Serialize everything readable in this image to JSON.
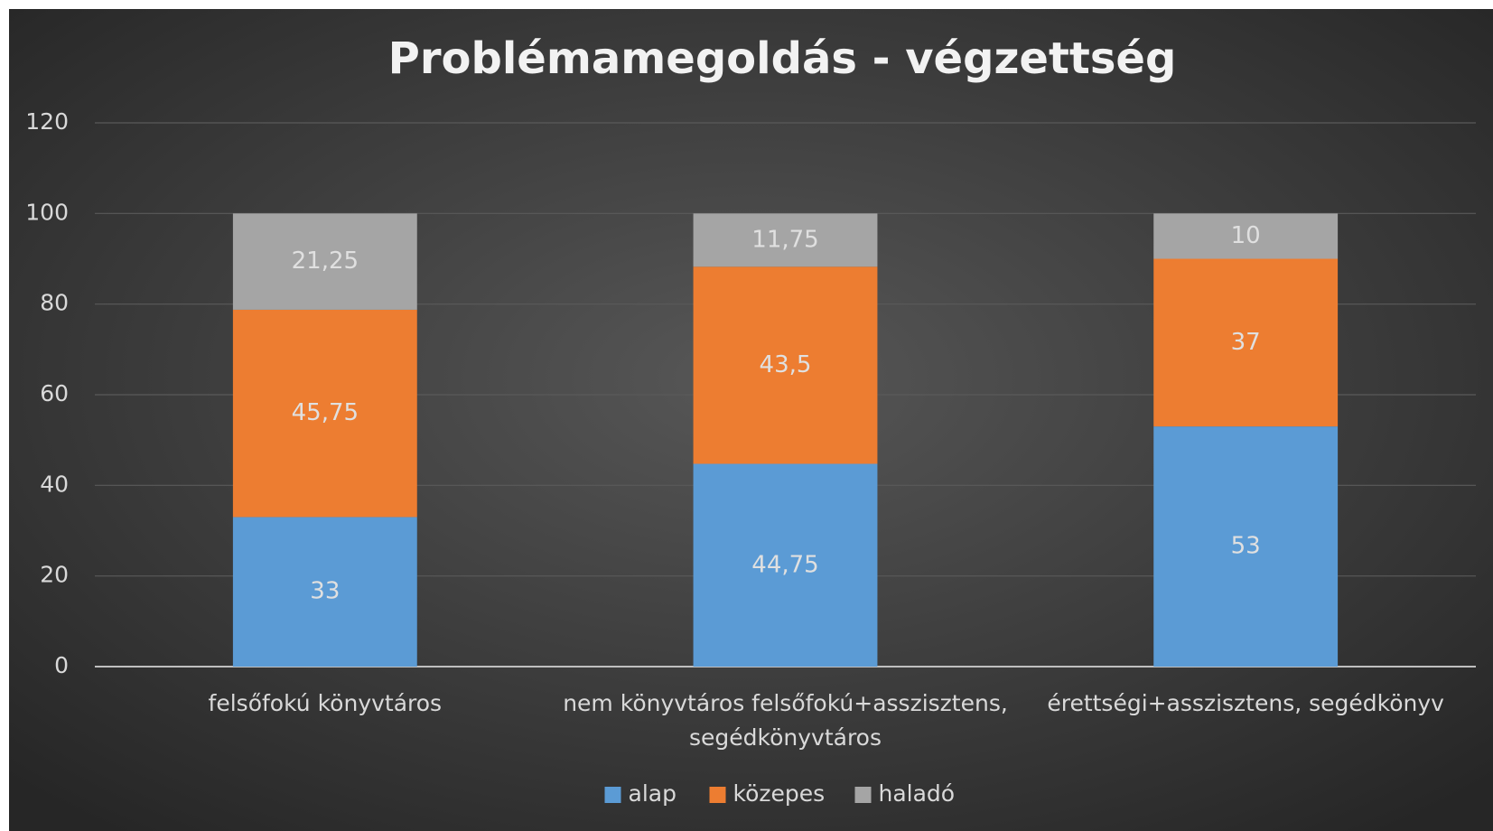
{
  "chart_data": {
    "type": "stacked_bar",
    "title": "Problémamegoldás - végzettség",
    "categories": [
      "felsőfokú könyvtáros",
      "nem könyvtáros felsőfokú+asszisztens, segédkönyvtáros",
      "érettségi+asszisztens, segédkönyv"
    ],
    "series": [
      {
        "name": "alap",
        "color": "#5b9bd5",
        "values": [
          33,
          44.75,
          53
        ],
        "value_labels": [
          "33",
          "44,75",
          "53"
        ]
      },
      {
        "name": "közepes",
        "color": "#ed7d31",
        "values": [
          45.75,
          43.5,
          37
        ],
        "value_labels": [
          "45,75",
          "43,5",
          "37"
        ]
      },
      {
        "name": "haladó",
        "color": "#a5a5a5",
        "values": [
          21.25,
          11.75,
          10
        ],
        "value_labels": [
          "21,25",
          "11,75",
          "10"
        ]
      }
    ],
    "ylim": [
      0,
      120
    ],
    "yticks": [
      0,
      20,
      40,
      60,
      80,
      100,
      120
    ],
    "grid": true,
    "legend": "bottom"
  }
}
